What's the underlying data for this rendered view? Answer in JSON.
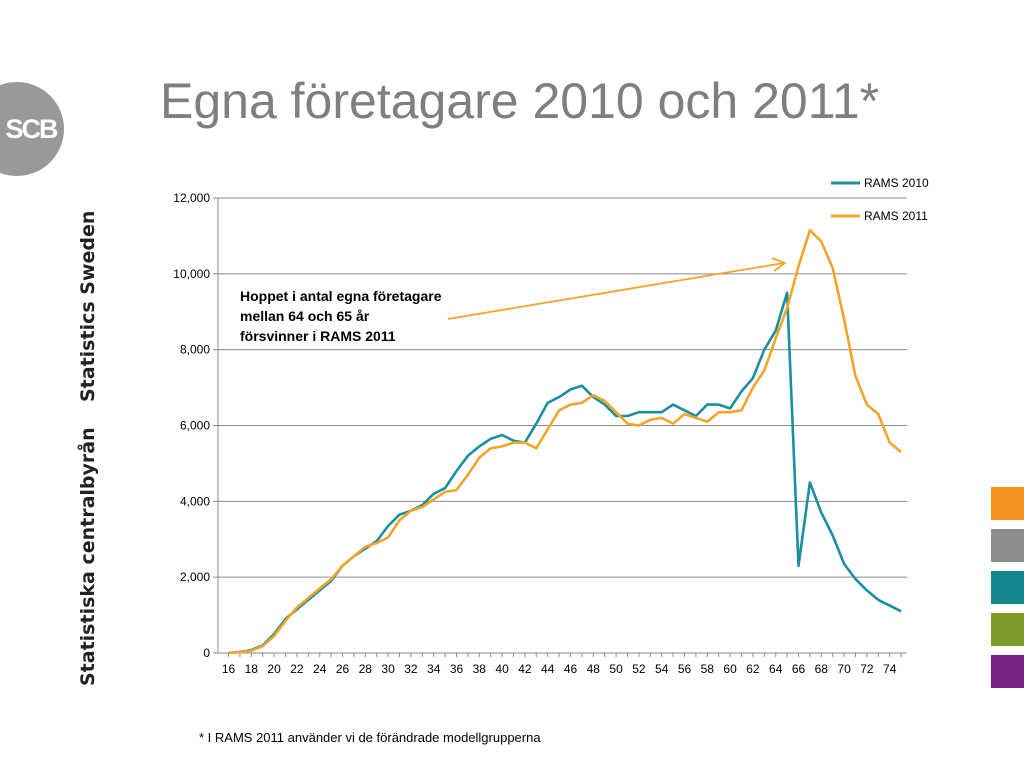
{
  "slide": {
    "title": "Egna företagare 2010 och 2011*",
    "footnote": "* I RAMS 2011 använder vi de förändrade modellgrupperna",
    "logo_text": "SCB",
    "side_text_en": "Statistics Sweden",
    "side_text_sv": "Statistiska centralbyrån",
    "swatch_colors": [
      "#f0921b",
      "#8c8c8c",
      "#14868e",
      "#7e9b2b",
      "#742383"
    ]
  },
  "chart_data": {
    "type": "line",
    "title": "",
    "xlabel": "",
    "ylabel": "",
    "ylim": [
      0,
      12000
    ],
    "yticks": [
      0,
      2000,
      4000,
      6000,
      8000,
      10000,
      12000
    ],
    "ytick_labels": [
      "0",
      "2,000",
      "4,000",
      "6,000",
      "8,000",
      "10,000",
      "12,000"
    ],
    "x_range": [
      16,
      75
    ],
    "xtick_labels": [
      "16",
      "18",
      "20",
      "22",
      "24",
      "26",
      "28",
      "30",
      "32",
      "34",
      "36",
      "38",
      "40",
      "42",
      "44",
      "46",
      "48",
      "50",
      "52",
      "54",
      "56",
      "58",
      "60",
      "62",
      "64",
      "66",
      "68",
      "70",
      "72",
      "74"
    ],
    "grid": true,
    "legend_position": "top-right",
    "x": [
      16,
      17,
      18,
      19,
      20,
      21,
      22,
      23,
      24,
      25,
      26,
      27,
      28,
      29,
      30,
      31,
      32,
      33,
      34,
      35,
      36,
      37,
      38,
      39,
      40,
      41,
      42,
      43,
      44,
      45,
      46,
      47,
      48,
      49,
      50,
      51,
      52,
      53,
      54,
      55,
      56,
      57,
      58,
      59,
      60,
      61,
      62,
      63,
      64,
      65,
      66,
      67,
      68,
      69,
      70,
      71,
      72,
      73,
      74,
      75
    ],
    "series": [
      {
        "name": "RAMS 2010",
        "color": "#1b8fa0",
        "values": [
          0,
          30,
          80,
          200,
          500,
          900,
          1150,
          1400,
          1650,
          1900,
          2300,
          2550,
          2750,
          2950,
          3350,
          3650,
          3750,
          3900,
          4200,
          4350,
          4800,
          5200,
          5450,
          5650,
          5750,
          5600,
          5550,
          6050,
          6600,
          6750,
          6950,
          7050,
          6750,
          6550,
          6250,
          6250,
          6350,
          6350,
          6350,
          6550,
          6400,
          6250,
          6550,
          6550,
          6450,
          6900,
          7250,
          8000,
          8500,
          9500,
          2300,
          4500,
          3700,
          3100,
          2350,
          1950,
          1650,
          1400,
          1250,
          1100
        ]
      },
      {
        "name": "RAMS 2011",
        "color": "#f2a52a",
        "values": [
          0,
          20,
          60,
          180,
          450,
          850,
          1200,
          1450,
          1700,
          1950,
          2300,
          2550,
          2800,
          2900,
          3050,
          3500,
          3750,
          3850,
          4050,
          4250,
          4300,
          4700,
          5150,
          5400,
          5450,
          5550,
          5550,
          5400,
          5900,
          6400,
          6550,
          6600,
          6800,
          6650,
          6350,
          6050,
          6000,
          6150,
          6200,
          6050,
          6300,
          6200,
          6100,
          6350,
          6350,
          6400,
          7000,
          7450,
          8300,
          9100,
          10200,
          11150,
          10850,
          10150,
          8800,
          7300,
          6550,
          6300,
          5550,
          5300
        ]
      }
    ],
    "annotation": {
      "text": [
        "Hoppet i antal egna företagare",
        "mellan 64 och 65 år",
        "försvinner i RAMS 2011"
      ],
      "arrow_color": "#f2a52a"
    }
  }
}
